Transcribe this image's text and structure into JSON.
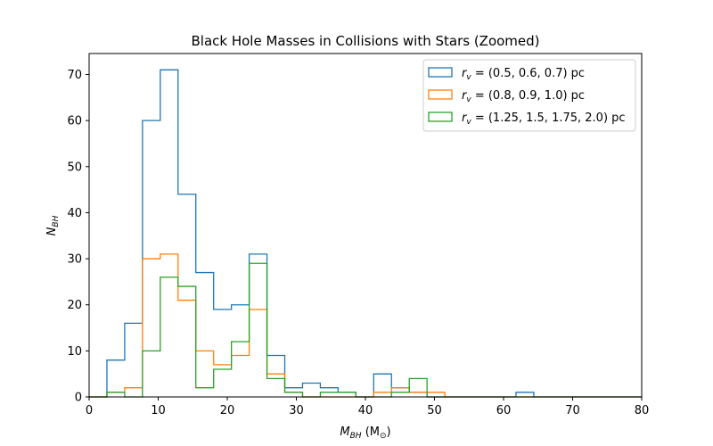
{
  "chart_data": {
    "type": "histogram-step",
    "title": "Black Hole Masses in Collisions with Stars (Zoomed)",
    "xlabel": {
      "main": "M",
      "sub": "BH",
      "unit_open": " (M",
      "unit_sub": "⊙",
      "unit_close": ")"
    },
    "ylabel": {
      "main": "N",
      "sub": "BH"
    },
    "xlim": [
      0,
      80
    ],
    "ylim": [
      0,
      74.55
    ],
    "xticks": [
      0,
      10,
      20,
      30,
      40,
      50,
      60,
      70,
      80
    ],
    "yticks": [
      0,
      10,
      20,
      30,
      40,
      50,
      60,
      70
    ],
    "bin_edges": [
      0,
      2.575,
      5.15,
      7.725,
      10.3,
      12.875,
      15.45,
      18.025,
      20.6,
      23.175,
      25.75,
      28.325,
      30.9,
      33.475,
      36.05,
      38.625,
      41.2,
      43.775,
      46.35,
      48.925,
      51.5,
      54.075,
      56.65,
      59.225,
      61.8,
      64.375,
      66.95,
      69.525,
      72.1,
      74.675,
      77.25,
      80
    ],
    "legend_position": "upper right",
    "series": [
      {
        "name": "r_v = (0.5, 0.6, 0.7) pc",
        "legend_prefix": "r",
        "legend_sub": "v",
        "legend_rest": " = (0.5, 0.6, 0.7) pc",
        "color": "#1f77b4",
        "values": [
          0,
          8,
          16,
          60,
          71,
          44,
          27,
          19,
          20,
          31,
          9,
          2,
          3,
          2,
          1,
          0,
          5,
          2,
          1,
          0,
          0,
          0,
          0,
          0,
          1,
          0,
          0,
          0,
          0,
          0,
          0
        ]
      },
      {
        "name": "r_v = (0.8, 0.9, 1.0) pc",
        "legend_prefix": "r",
        "legend_sub": "v",
        "legend_rest": " = (0.8, 0.9, 1.0) pc",
        "color": "#ff7f0e",
        "values": [
          0,
          1,
          2,
          30,
          31,
          21,
          10,
          7,
          9,
          19,
          5,
          1,
          0,
          0,
          0,
          0,
          1,
          2,
          1,
          1,
          0,
          0,
          0,
          0,
          0,
          0,
          0,
          0,
          0,
          0,
          0
        ]
      },
      {
        "name": "r_v = (1.25, 1.5, 1.75, 2.0) pc",
        "legend_prefix": "r",
        "legend_sub": "v",
        "legend_rest": " = (1.25, 1.5, 1.75, 2.0) pc",
        "color": "#2ca02c",
        "values": [
          0,
          1,
          0,
          10,
          26,
          24,
          2,
          6,
          12,
          29,
          4,
          1,
          0,
          1,
          1,
          0,
          0,
          1,
          4,
          0,
          0,
          0,
          0,
          0,
          0,
          0,
          0,
          0,
          0,
          0,
          0
        ]
      }
    ]
  }
}
